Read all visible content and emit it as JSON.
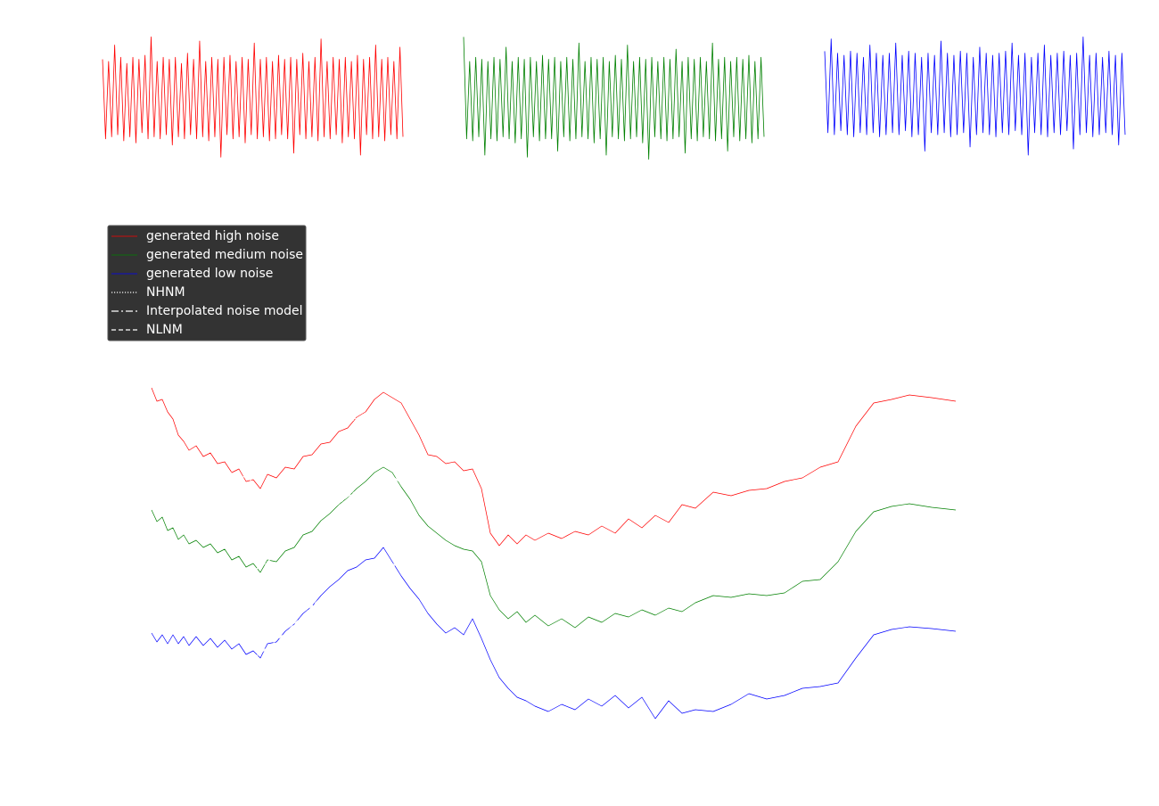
{
  "chart_data": [
    {
      "type": "line",
      "ylim": [
        -3.5,
        3.5
      ],
      "series": [
        {
          "color": "#ff0000",
          "values": [
            1.9,
            -2.0,
            1.8,
            -1.9,
            2.6,
            -1.8,
            2.0,
            -2.1,
            1.7,
            -1.9,
            2.0,
            -2.2,
            1.9,
            -1.7,
            2.1,
            -2.0,
            3.0,
            -1.9,
            1.8,
            -2.0,
            2.0,
            -1.8,
            1.9,
            -2.3,
            2.0,
            -1.9,
            1.7,
            -2.0,
            2.2,
            -1.8,
            1.9,
            -2.0,
            2.8,
            -1.9,
            1.8,
            -2.1,
            2.0,
            -1.9,
            1.9,
            -2.9,
            2.0,
            -1.8,
            2.1,
            -2.0,
            1.8,
            -1.9,
            2.0,
            -2.2,
            1.9,
            -1.8,
            2.7,
            -2.0,
            1.9,
            -1.9,
            2.0,
            -2.1,
            1.8,
            -2.0,
            2.1,
            -1.8,
            1.9,
            -2.0,
            2.0,
            -2.7,
            1.9,
            -1.8,
            2.2,
            -2.0,
            1.8,
            -1.9,
            2.0,
            -2.1,
            2.9,
            -1.9,
            1.8,
            -2.0,
            2.0,
            -1.8,
            1.9,
            -2.2,
            2.0,
            -1.9,
            1.8,
            -2.0,
            2.1,
            -2.8,
            1.9,
            -1.8,
            2.0,
            -2.0,
            2.6,
            -1.9,
            1.9,
            -2.1,
            2.0,
            -1.8,
            1.8,
            -2.0,
            2.5,
            -1.9
          ]
        }
      ]
    },
    {
      "type": "line",
      "ylim": [
        -3.5,
        3.5
      ],
      "series": [
        {
          "color": "#008000",
          "values": [
            3.0,
            -2.0,
            1.8,
            -2.1,
            2.0,
            -1.9,
            1.9,
            -2.8,
            1.8,
            -2.0,
            2.0,
            -2.1,
            1.9,
            -1.9,
            2.5,
            -2.0,
            1.8,
            -2.2,
            2.0,
            -2.0,
            1.9,
            -2.9,
            2.0,
            -1.9,
            1.8,
            -2.1,
            2.1,
            -2.0,
            1.9,
            -2.0,
            2.0,
            -2.6,
            1.8,
            -1.9,
            2.0,
            -2.1,
            1.9,
            -2.0,
            2.7,
            -1.9,
            1.8,
            -2.0,
            2.0,
            -2.2,
            1.9,
            -2.0,
            2.0,
            -2.8,
            1.8,
            -1.9,
            2.1,
            -2.0,
            1.9,
            -2.1,
            2.6,
            -2.0,
            1.8,
            -1.9,
            2.0,
            -2.2,
            1.9,
            -3.0,
            2.0,
            -1.9,
            1.8,
            -2.0,
            2.0,
            -2.1,
            1.9,
            -2.0,
            2.4,
            -1.9,
            1.8,
            -2.7,
            2.0,
            -2.0,
            1.9,
            -2.1,
            2.0,
            -1.9,
            1.8,
            -2.0,
            2.7,
            -2.1,
            1.9,
            -2.0,
            2.0,
            -2.6,
            1.8,
            -1.9,
            2.0,
            -2.1,
            1.9,
            -2.0,
            2.1,
            -2.2,
            1.8,
            -2.0,
            2.0,
            -1.9
          ]
        }
      ]
    },
    {
      "type": "line",
      "ylim": [
        -3.5,
        3.5
      ],
      "series": [
        {
          "color": "#0000ff",
          "values": [
            2.3,
            -1.7,
            2.9,
            -1.8,
            2.2,
            -1.6,
            2.1,
            -1.8,
            2.3,
            -1.9,
            2.2,
            -1.7,
            2.0,
            -1.8,
            2.6,
            -1.7,
            2.2,
            -1.9,
            2.1,
            -1.8,
            2.2,
            -1.7,
            2.7,
            -1.8,
            2.1,
            -1.6,
            2.3,
            -1.9,
            2.2,
            -1.8,
            2.0,
            -2.6,
            2.2,
            -1.7,
            2.1,
            -1.8,
            2.8,
            -1.7,
            2.2,
            -1.9,
            2.1,
            -1.8,
            2.3,
            -1.7,
            2.2,
            -2.4,
            2.0,
            -1.8,
            2.5,
            -1.7,
            2.2,
            -1.8,
            2.1,
            -1.9,
            2.2,
            -1.7,
            2.3,
            -1.8,
            2.7,
            -1.6,
            2.1,
            -1.8,
            2.2,
            -2.8,
            2.0,
            -1.7,
            2.2,
            -1.8,
            2.6,
            -1.9,
            2.1,
            -1.7,
            2.2,
            -1.8,
            2.3,
            -1.6,
            2.1,
            -2.5,
            2.2,
            -1.8,
            3.0,
            -1.7,
            2.1,
            -1.9,
            2.2,
            -1.8,
            2.0,
            -1.7,
            2.3,
            -1.8,
            2.1,
            -2.3,
            2.2,
            -1.8
          ]
        }
      ]
    },
    {
      "type": "line",
      "xlim": [
        0,
        451
      ],
      "ylim": [
        -200,
        -90
      ],
      "legend": "upper left",
      "x": [
        0,
        3,
        6,
        9,
        12,
        15,
        18,
        21,
        25,
        29,
        33,
        37,
        41,
        45,
        49,
        53,
        57,
        61,
        65,
        70,
        75,
        80,
        85,
        90,
        95,
        100,
        105,
        110,
        115,
        120,
        125,
        130,
        135,
        140,
        145,
        150,
        155,
        160,
        165,
        170,
        175,
        180,
        185,
        190,
        195,
        200,
        205,
        210,
        215,
        222.5,
        230,
        237.5,
        245,
        252.5,
        260,
        267.5,
        275,
        282.5,
        290,
        297.5,
        305,
        315,
        325,
        335,
        345,
        355,
        365,
        375,
        385,
        395,
        405,
        415,
        425,
        437.5,
        451
      ],
      "series": [
        {
          "name": "generated high noise",
          "color": "#ff0000",
          "linestyle": "solid",
          "values": [
            -93.75,
            -97.5,
            -97,
            -100.5,
            -102.5,
            -107,
            -108.75,
            -111.25,
            -110,
            -113,
            -112,
            -115,
            -114.5,
            -117.5,
            -116.5,
            -120,
            -119.5,
            -122,
            -118,
            -119,
            -116,
            -116.5,
            -113,
            -112.5,
            -109.5,
            -109,
            -106,
            -105,
            -102,
            -100.5,
            -97,
            -95,
            -96.5,
            -98,
            -102.5,
            -107,
            -112.5,
            -113,
            -115,
            -114.5,
            -117,
            -116.5,
            -122,
            -134.5,
            -138,
            -135,
            -137.5,
            -135,
            -136.5,
            -134.5,
            -136,
            -134,
            -135,
            -132.5,
            -134.5,
            -130.5,
            -133,
            -129.5,
            -131.5,
            -126.5,
            -127.5,
            -123,
            -124,
            -122.5,
            -122,
            -120,
            -119,
            -116,
            -114.5,
            -104.5,
            -98,
            -97,
            -95.75,
            -96.5,
            -97.5
          ]
        },
        {
          "name": "generated medium noise",
          "color": "#008000",
          "linestyle": "solid",
          "values": [
            -128,
            -131.25,
            -130,
            -133.75,
            -133,
            -136.25,
            -135,
            -137.5,
            -136.5,
            -138.5,
            -137.5,
            -140,
            -139,
            -142,
            -141,
            -144,
            -143,
            -145.5,
            -142,
            -142.5,
            -139.5,
            -138.5,
            -135,
            -134,
            -131,
            -129,
            -126.5,
            -124.5,
            -122,
            -120,
            -117.5,
            -116,
            -117.5,
            -121.5,
            -125,
            -129.5,
            -132.5,
            -134.5,
            -136.5,
            -138,
            -139,
            -139.5,
            -142.5,
            -152,
            -156,
            -158.5,
            -156.5,
            -159.5,
            -157.5,
            -160.5,
            -158.5,
            -161,
            -158,
            -159.5,
            -157,
            -158,
            -156,
            -157.5,
            -155.5,
            -156.5,
            -154,
            -152,
            -152.5,
            -151.5,
            -152,
            -151.25,
            -148,
            -147.5,
            -142.5,
            -134,
            -128.5,
            -127,
            -126.25,
            -127.25,
            -128
          ]
        },
        {
          "name": "generated low noise",
          "color": "#0000ff",
          "linestyle": "solid",
          "values": [
            -162.5,
            -165,
            -163,
            -165.5,
            -163,
            -165.5,
            -163.5,
            -166,
            -163.5,
            -166,
            -164,
            -166.5,
            -164.5,
            -167,
            -165.5,
            -168.5,
            -167.5,
            -169.5,
            -165.5,
            -165,
            -162,
            -160,
            -157,
            -155,
            -152,
            -149.5,
            -147.5,
            -145,
            -144,
            -142,
            -141.5,
            -138.5,
            -142.5,
            -146.5,
            -150,
            -153,
            -157,
            -160,
            -162.5,
            -161,
            -163,
            -158.5,
            -164,
            -170,
            -175,
            -178,
            -180.5,
            -181.5,
            -183,
            -184.5,
            -182.5,
            -184,
            -181,
            -183,
            -180,
            -183.5,
            -180.5,
            -186.5,
            -181.5,
            -185,
            -184,
            -184.5,
            -182.5,
            -179.5,
            -181,
            -180,
            -178,
            -177.5,
            -176.5,
            -169.5,
            -163,
            -161.5,
            -160.75,
            -161.25,
            -162
          ]
        },
        {
          "name": "NHNM",
          "color": "#ffffff",
          "linestyle": "dotted",
          "values": [
            -98.75,
            -100.75,
            -102.75,
            -105,
            -107,
            -109,
            -111,
            -112.75,
            -113.5,
            -114.25,
            -115,
            -116,
            -116.75,
            -117.5,
            -118.25,
            -119,
            -120,
            -119,
            -117.75,
            -116.25,
            -114.75,
            -113.25,
            -111.5,
            -110,
            -108.5,
            -107,
            -105.5,
            -103.75,
            -102.25,
            -100.75,
            -99,
            -97.5,
            -98,
            -98.75,
            null,
            null,
            null,
            null,
            null,
            null,
            null,
            null,
            null,
            null,
            null,
            null,
            null,
            null,
            null,
            null,
            null,
            null,
            null,
            null,
            null,
            null,
            null,
            null,
            null,
            null,
            null,
            null,
            null,
            null,
            null,
            null,
            null,
            null,
            null,
            null,
            null,
            null,
            null,
            null,
            null
          ]
        },
        {
          "name": "Interpolated noise model",
          "color": "#ffffff",
          "linestyle": "dashdot",
          "values": [
            -133,
            -134,
            -135,
            -136,
            -137,
            -138,
            -139,
            -139.75,
            -140.25,
            -140.75,
            -141.5,
            -142.25,
            -143,
            -143.5,
            -144,
            -144.5,
            -145,
            -144,
            -142.5,
            -140.5,
            -138.5,
            -136.5,
            -134.5,
            -132.5,
            -130.5,
            -128.25,
            -126.25,
            -124.25,
            -122.5,
            -120.75,
            -119,
            -117.5,
            -118.5,
            -120.5,
            null,
            null,
            null,
            null,
            null,
            null,
            null,
            null,
            null,
            null,
            null,
            null,
            null,
            null,
            null,
            null,
            null,
            null,
            null,
            null,
            null,
            null,
            null,
            null,
            null,
            null,
            null,
            null,
            null,
            null,
            null,
            null,
            null,
            null,
            null,
            null,
            null,
            null,
            null,
            null,
            null
          ]
        },
        {
          "name": "NLNM",
          "color": "#ffffff",
          "linestyle": "dashed",
          "values": [
            -166.5,
            -166.5,
            -166.5,
            -166.5,
            -166.5,
            -166.5,
            -166.5,
            -166.5,
            -166.5,
            -166.5,
            -167,
            -167.5,
            -168,
            -168.5,
            -169,
            -169.25,
            -169.5,
            -168.25,
            -166.5,
            -164.5,
            -162.5,
            -160,
            -157.5,
            -155,
            -152.5,
            -150,
            -148,
            -146.25,
            -144.5,
            -143,
            -142,
            -141.5,
            -143,
            -145,
            null,
            null,
            null,
            null,
            null,
            null,
            null,
            null,
            null,
            null,
            null,
            null,
            null,
            null,
            null,
            null,
            null,
            null,
            null,
            null,
            null,
            null,
            null,
            null,
            null,
            null,
            null,
            null,
            null,
            null,
            null,
            null,
            null,
            null,
            null,
            null,
            null,
            null,
            null,
            null,
            null
          ]
        }
      ]
    }
  ]
}
